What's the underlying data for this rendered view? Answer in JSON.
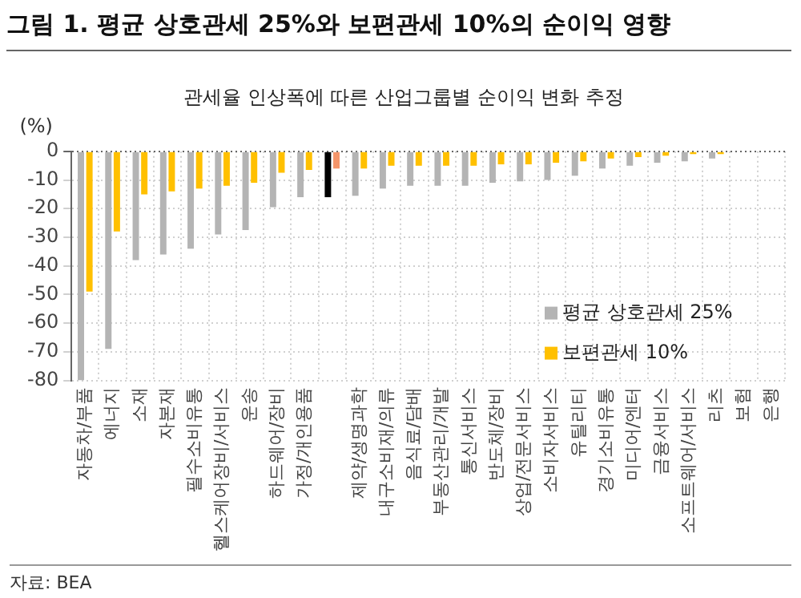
{
  "chart_data": {
    "type": "bar",
    "title": "그림 1. 평균 상호관세 25%와 보편관세 10%의 순이익 영향",
    "subtitle": "관세율 인상폭에 따른 산업그룹별 순이익 변화 추정",
    "ylabel": "(%)",
    "categories": [
      "자동차/부품",
      "에너지",
      "소재",
      "자본재",
      "필수소비유통",
      "헬스케어장비/서비스",
      "운송",
      "하드웨어/장비",
      "가정/개인용품",
      null,
      "제약/생명과학",
      "내구소비재/의류",
      "음식료/담배",
      "부동산관리/개발",
      "통신서비스",
      "반도체/장비",
      "상업/전문서비스",
      "소비자서비스",
      "유틸리티",
      "경기소비유통",
      "미디어/엔터",
      "금융서비스",
      "소프트웨어/서비스",
      "리츠",
      "보험",
      "은행"
    ],
    "series": [
      {
        "name": "평균 상호관세 25%",
        "color": "#b4b4b4",
        "colors": [
          "#b4b4b4",
          "#b4b4b4",
          "#b4b4b4",
          "#b4b4b4",
          "#b4b4b4",
          "#b4b4b4",
          "#b4b4b4",
          "#b4b4b4",
          "#b4b4b4",
          "#000000",
          "#b4b4b4",
          "#b4b4b4",
          "#b4b4b4",
          "#b4b4b4",
          "#b4b4b4",
          "#b4b4b4",
          "#b4b4b4",
          "#b4b4b4",
          "#b4b4b4",
          "#b4b4b4",
          "#b4b4b4",
          "#b4b4b4",
          "#b4b4b4",
          "#b4b4b4",
          "#b4b4b4",
          "#b4b4b4"
        ],
        "values": [
          -80,
          -69,
          -38,
          -36,
          -34,
          -29,
          -27.5,
          -19.5,
          -16,
          -16,
          -15.5,
          -13,
          -12,
          -12,
          -12,
          -11,
          -10.5,
          -10,
          -8.5,
          -6,
          -5,
          -4,
          -3.5,
          -2.5,
          0,
          0
        ]
      },
      {
        "name": "보편관세 10%",
        "color": "#ffc000",
        "colors": [
          "#ffc000",
          "#ffc000",
          "#ffc000",
          "#ffc000",
          "#ffc000",
          "#ffc000",
          "#ffc000",
          "#ffc000",
          "#ffc000",
          "#f4956a",
          "#ffc000",
          "#ffc000",
          "#ffc000",
          "#ffc000",
          "#ffc000",
          "#ffc000",
          "#ffc000",
          "#ffc000",
          "#ffc000",
          "#ffc000",
          "#ffc000",
          "#ffc000",
          "#ffc000",
          "#ffc000",
          "#ffc000",
          "#ffc000"
        ],
        "values": [
          -49,
          -28,
          -15,
          -14,
          -13,
          -12,
          -11,
          -7.5,
          -6.5,
          -6,
          -6,
          -5,
          -5,
          -5,
          -5,
          -4.5,
          -4.5,
          -4,
          -3.5,
          -2.5,
          -2,
          -1.5,
          -1,
          -1,
          0,
          0
        ]
      }
    ],
    "ylim": [
      -80,
      0
    ],
    "yticks": [
      -80,
      -70,
      -60,
      -50,
      -40,
      -30,
      -20,
      -10,
      0
    ],
    "grid": true,
    "legend": "bottom right",
    "annotations": [
      "자료: BEA"
    ]
  }
}
